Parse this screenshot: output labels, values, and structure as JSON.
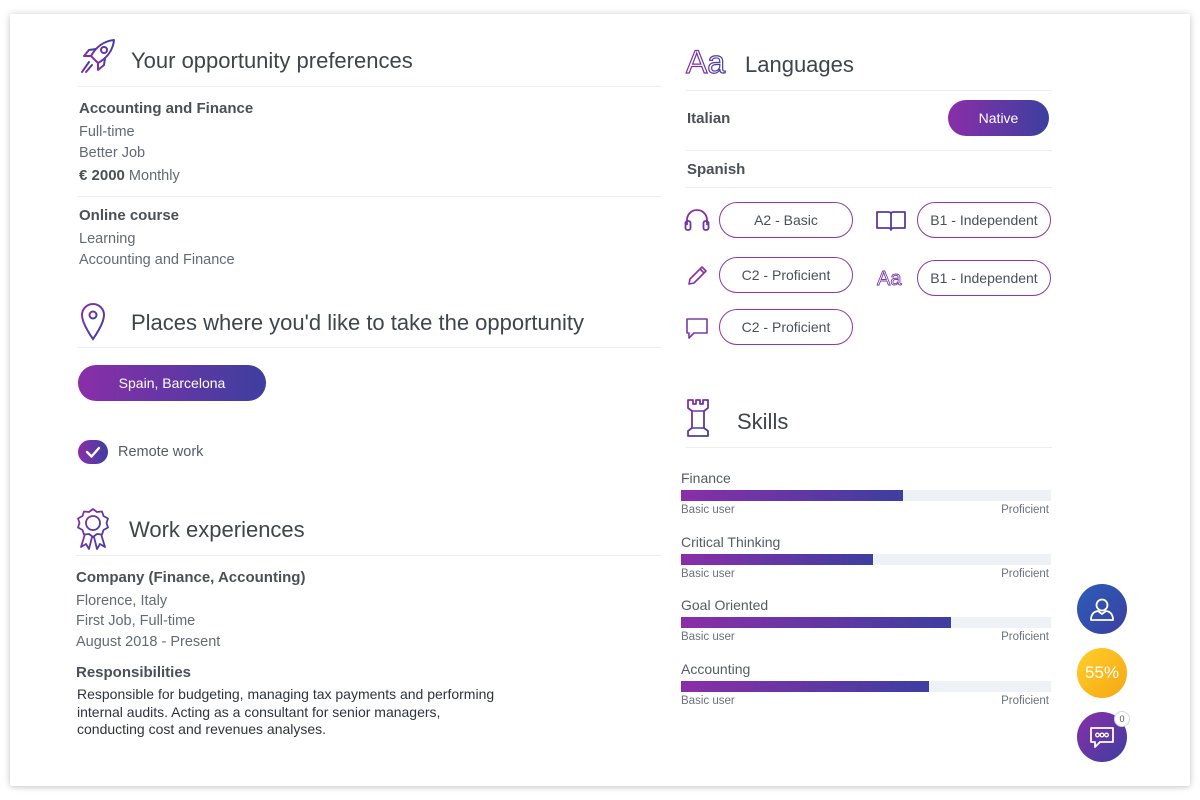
{
  "colors": {
    "purple": "#8a2ea8",
    "indigo": "#3d3fa0",
    "gold": "#f7b718",
    "track": "#eef1f5"
  },
  "preferences": {
    "title": "Your opportunity preferences",
    "icon": "rocket-icon",
    "item1": {
      "heading": "Accounting and Finance",
      "type": "Full-time",
      "goal": "Better Job",
      "salary_amount": "€ 2000",
      "salary_period": "Monthly"
    },
    "item2": {
      "heading": "Online course",
      "type": "Learning",
      "field": "Accounting and Finance"
    }
  },
  "places": {
    "title": "Places where you'd like to take the opportunity",
    "icon": "location-pin-icon",
    "location": "Spain, Barcelona",
    "remote_label": "Remote work",
    "remote_checked": true
  },
  "work": {
    "title": "Work experiences",
    "icon": "award-ribbon-icon",
    "company": "Company (Finance, Accounting)",
    "location": "Florence, Italy",
    "job_type": "First Job, Full-time",
    "period": "August 2018 - Present",
    "resp_heading": "Responsibilities",
    "resp_lines": [
      "Responsible for budgeting, managing tax payments and performing",
      "internal audits. Acting as a consultant for senior managers,",
      "conducting cost and revenues analyses."
    ]
  },
  "languages": {
    "title": "Languages",
    "icon_text": "Aa",
    "lang1": {
      "name": "Italian",
      "level": "Native"
    },
    "lang2": {
      "name": "Spanish",
      "listening": "A2 - Basic",
      "reading": "B1 - Independent",
      "writing": "C2 - Proficient",
      "grammar": "B1 - Independent",
      "speaking": "C2 - Proficient"
    }
  },
  "skills": {
    "title": "Skills",
    "icon": "chess-rook-icon",
    "min_label": "Basic user",
    "max_label": "Proficient",
    "items": [
      {
        "name": "Finance",
        "level": 0.6
      },
      {
        "name": "Critical Thinking",
        "level": 0.52
      },
      {
        "name": "Goal Oriented",
        "level": 0.73
      },
      {
        "name": "Accounting",
        "level": 0.67
      }
    ]
  },
  "fabs": {
    "profile_icon": "user-profile-icon",
    "completion": "55%",
    "chat_icon": "chat-bubble-icon",
    "chat_count": "0"
  }
}
